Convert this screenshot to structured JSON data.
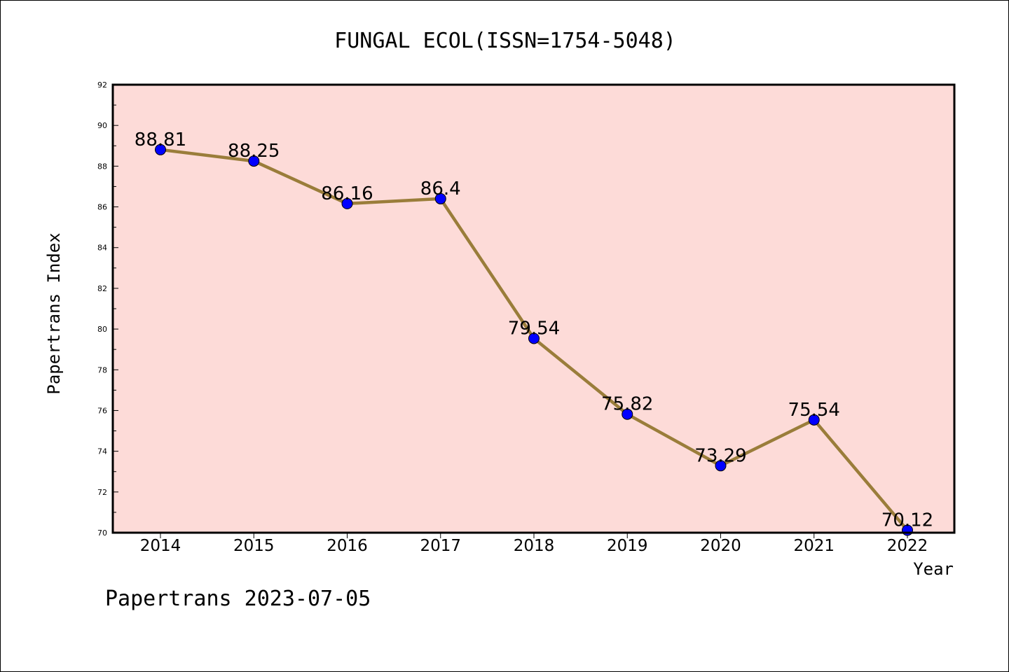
{
  "title": "FUNGAL ECOL(ISSN=1754-5048)",
  "footer": "Papertrans 2023-07-05",
  "colors": {
    "plot_background": "#fddbd8",
    "line": "#9a7d3a",
    "marker": "#0000ff",
    "frame": "#000000"
  },
  "chart_data": {
    "type": "line",
    "title": "FUNGAL ECOL(ISSN=1754-5048)",
    "xlabel": "Year",
    "ylabel": "Papertrans Index",
    "categories": [
      "2014",
      "2015",
      "2016",
      "2017",
      "2018",
      "2019",
      "2020",
      "2021",
      "2022"
    ],
    "values": [
      88.81,
      88.25,
      86.16,
      86.4,
      79.54,
      75.82,
      73.29,
      75.54,
      70.12
    ],
    "data_labels": [
      "88.81",
      "88.25",
      "86.16",
      "86.4",
      "79.54",
      "75.82",
      "73.29",
      "75.54",
      "70.12"
    ],
    "ylim": [
      70,
      92
    ],
    "yticks": [
      70,
      72,
      74,
      76,
      78,
      80,
      82,
      84,
      86,
      88,
      90,
      92
    ],
    "ytick_labels": [
      "70",
      "72",
      "74",
      "76",
      "78",
      "80",
      "82",
      "84",
      "86",
      "88",
      "90",
      "92"
    ],
    "grid": false,
    "legend": "none"
  }
}
